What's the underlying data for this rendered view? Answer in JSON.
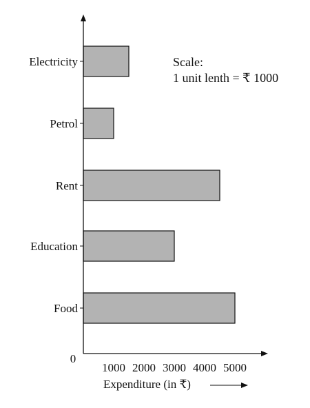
{
  "chart_data": {
    "type": "bar",
    "orientation": "horizontal",
    "categories": [
      "Food",
      "Education",
      "Rent",
      "Petrol",
      "Electricity"
    ],
    "values": [
      5000,
      3000,
      4500,
      1000,
      1500
    ],
    "xlabel": "Expenditure (in ₹)",
    "ylabel": "",
    "origin_label": "0",
    "x_ticks": [
      1000,
      2000,
      3000,
      4000,
      5000
    ],
    "xlim": [
      0,
      5000
    ],
    "grid": false,
    "bar_color": "#b3b3b3",
    "annotation": {
      "line1": "Scale:",
      "line2": "1 unit lenth = ₹ 1000"
    }
  }
}
